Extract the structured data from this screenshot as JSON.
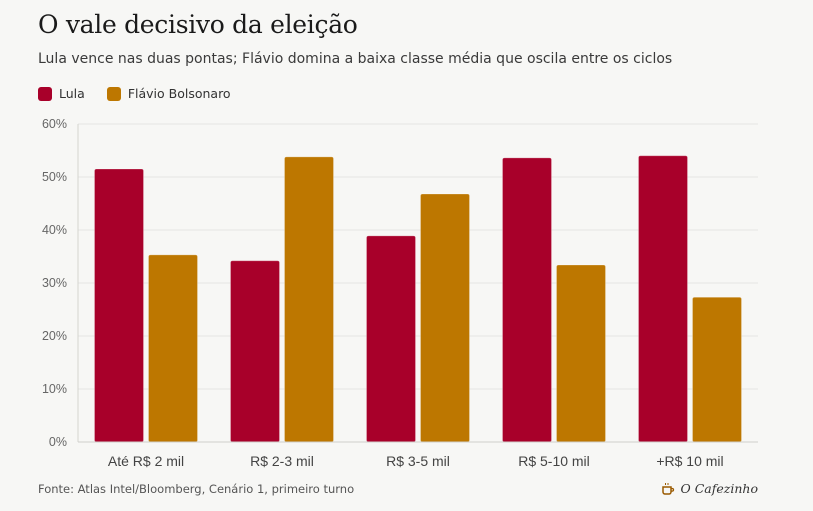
{
  "header": {
    "title": "O vale decisivo da eleição",
    "subtitle": "Lula vence nas duas pontas; Flávio domina a baixa classe média que oscila entre os ciclos"
  },
  "legend": [
    {
      "label": "Lula",
      "color": "#a8002a"
    },
    {
      "label": "Flávio Bolsonaro",
      "color": "#bd7700"
    }
  ],
  "footer": {
    "source": "Fonte: Atlas Intel/Bloomberg, Cenário 1, primeiro turno",
    "brand": "O Cafezinho",
    "brand_icon": "coffee-cup-icon"
  },
  "chart_data": {
    "type": "bar",
    "title": "O vale decisivo da eleição",
    "xlabel": "",
    "ylabel": "",
    "categories": [
      "Até R$ 2 mil",
      "R$ 2-3 mil",
      "R$ 3-5 mil",
      "R$ 5-10 mil",
      "+R$ 10 mil"
    ],
    "series": [
      {
        "name": "Lula",
        "color": "#a8002a",
        "values": [
          51.5,
          34.2,
          38.9,
          53.6,
          54.0
        ]
      },
      {
        "name": "Flávio Bolsonaro",
        "color": "#bd7700",
        "values": [
          35.3,
          53.8,
          46.8,
          33.4,
          27.3
        ]
      }
    ],
    "ylim": [
      0,
      60
    ],
    "yticks": [
      0,
      10,
      20,
      30,
      40,
      50,
      60
    ],
    "ytick_labels": [
      "0%",
      "10%",
      "20%",
      "30%",
      "40%",
      "50%",
      "60%"
    ],
    "grid": true,
    "legend_position": "top-left"
  }
}
